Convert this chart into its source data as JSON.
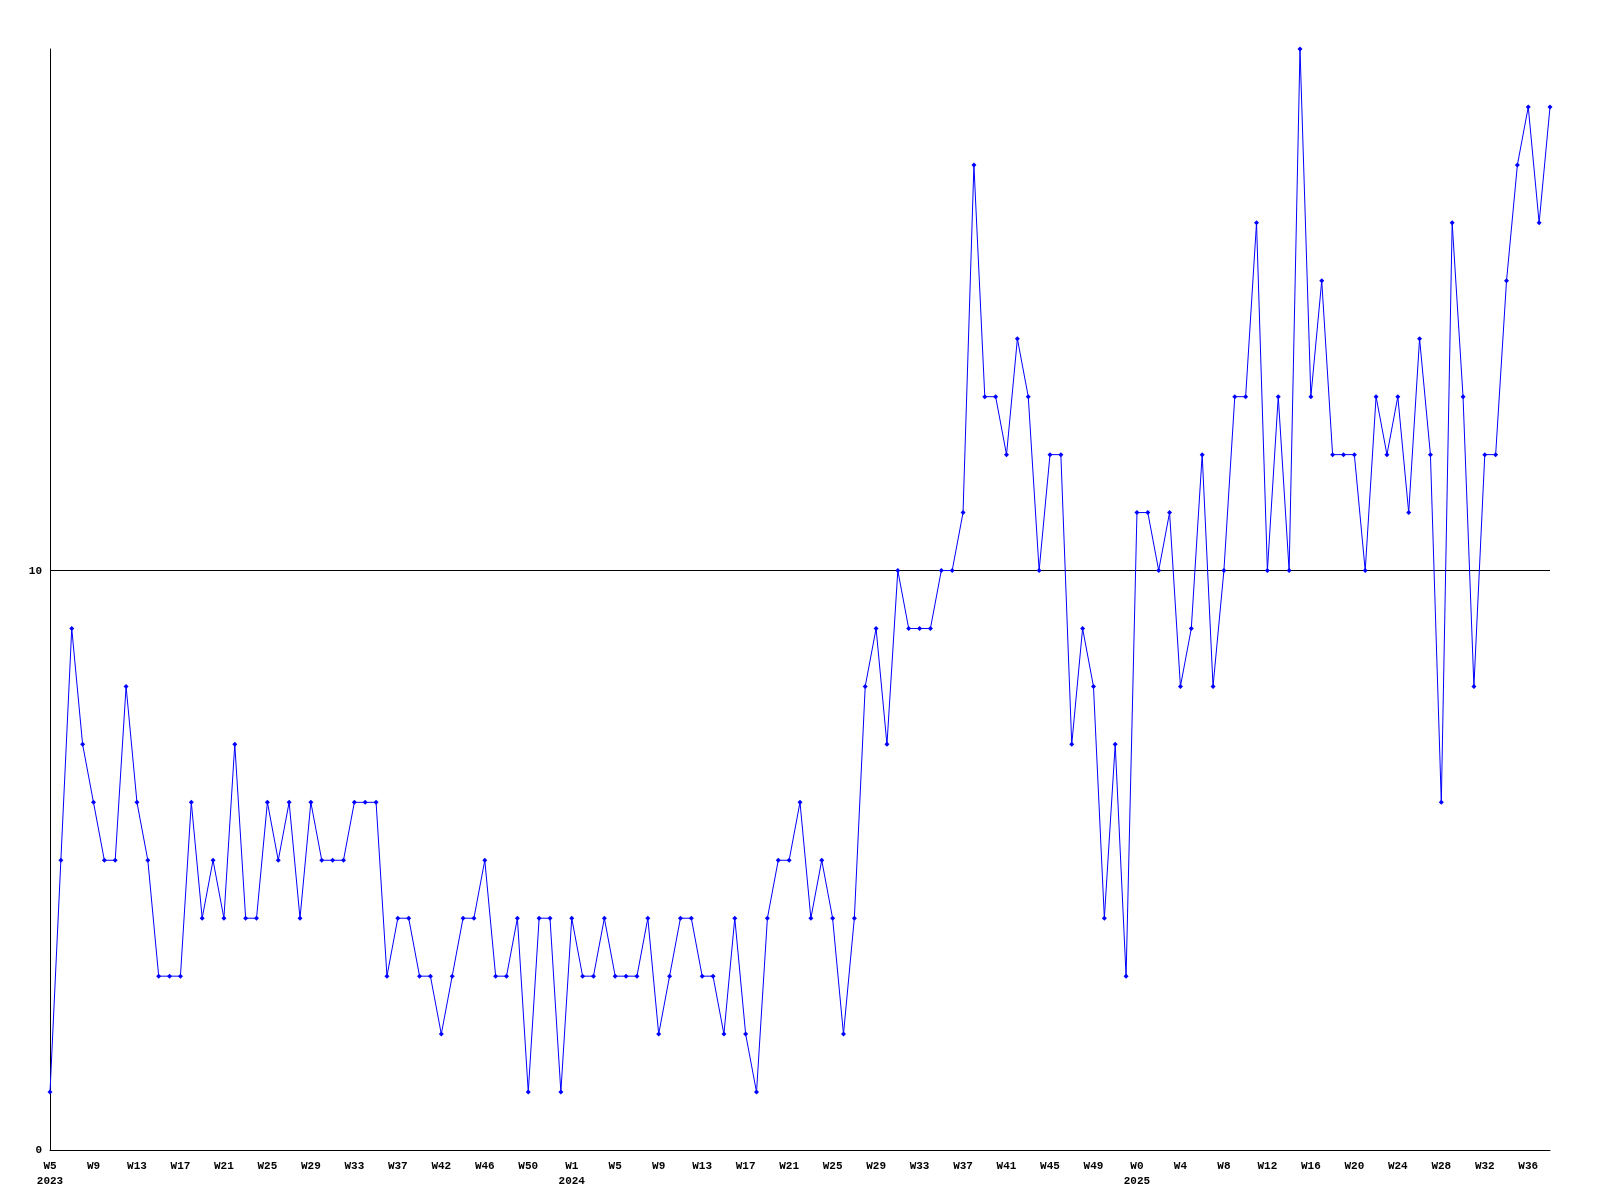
{
  "chart_data": {
    "type": "line",
    "categories": [
      "W5\n2023",
      null,
      null,
      null,
      "W9",
      null,
      null,
      null,
      "W13",
      null,
      null,
      null,
      "W17",
      null,
      null,
      null,
      "W21",
      null,
      null,
      null,
      "W25",
      null,
      null,
      null,
      "W29",
      null,
      null,
      null,
      "W33",
      null,
      null,
      null,
      "W37",
      null,
      null,
      null,
      "W42",
      null,
      null,
      null,
      "W46",
      null,
      null,
      null,
      "W50",
      null,
      null,
      null,
      "W1\n2024",
      null,
      null,
      null,
      "W5",
      null,
      null,
      null,
      "W9",
      null,
      null,
      null,
      "W13",
      null,
      null,
      null,
      "W17",
      null,
      null,
      null,
      "W21",
      null,
      null,
      null,
      "W25",
      null,
      null,
      null,
      "W29",
      null,
      null,
      null,
      "W33",
      null,
      null,
      null,
      "W37",
      null,
      null,
      null,
      "W41",
      null,
      null,
      null,
      "W45",
      null,
      null,
      null,
      "W49",
      null,
      null,
      null,
      "W0\n2025",
      null,
      null,
      null,
      "W4",
      null,
      null,
      null,
      "W8",
      null,
      null,
      null,
      "W12",
      null,
      null,
      null,
      "W16",
      null,
      null,
      null,
      "W20",
      null,
      null,
      null,
      "W24",
      null,
      null,
      null,
      "W28",
      null,
      null,
      null,
      "W32",
      null,
      null,
      null,
      "W36",
      null,
      null
    ],
    "series": [
      {
        "color": "#0000ff",
        "values": [
          1,
          5,
          9,
          7,
          6,
          5,
          5,
          8,
          6,
          5,
          3,
          3,
          3,
          6,
          4,
          5,
          4,
          7,
          4,
          4,
          6,
          5,
          6,
          4,
          6,
          5,
          5,
          5,
          6,
          6,
          6,
          3,
          4,
          4,
          3,
          3,
          2,
          3,
          4,
          4,
          5,
          3,
          3,
          4,
          1,
          4,
          4,
          1,
          4,
          3,
          3,
          4,
          3,
          3,
          3,
          4,
          2,
          3,
          4,
          4,
          3,
          3,
          2,
          4,
          2,
          1,
          4,
          5,
          5,
          6,
          4,
          5,
          4,
          2,
          4,
          8,
          9,
          7,
          10,
          9,
          9,
          9,
          10,
          10,
          11,
          17,
          13,
          13,
          12,
          14,
          13,
          10,
          12,
          12,
          7,
          9,
          8,
          4,
          7,
          3,
          11,
          11,
          10,
          11,
          8,
          9,
          12,
          8,
          10,
          13,
          13,
          16,
          10,
          13,
          10,
          19,
          13,
          15,
          12,
          12,
          12,
          10,
          13,
          12,
          13,
          11,
          14,
          12,
          6,
          16,
          13,
          8,
          12,
          12,
          15,
          17,
          18,
          16,
          18
        ]
      }
    ],
    "ylim": [
      0,
      19
    ],
    "yticks": [
      0,
      10
    ],
    "grid": "y",
    "marker": "diamond",
    "line_style": "solid"
  }
}
